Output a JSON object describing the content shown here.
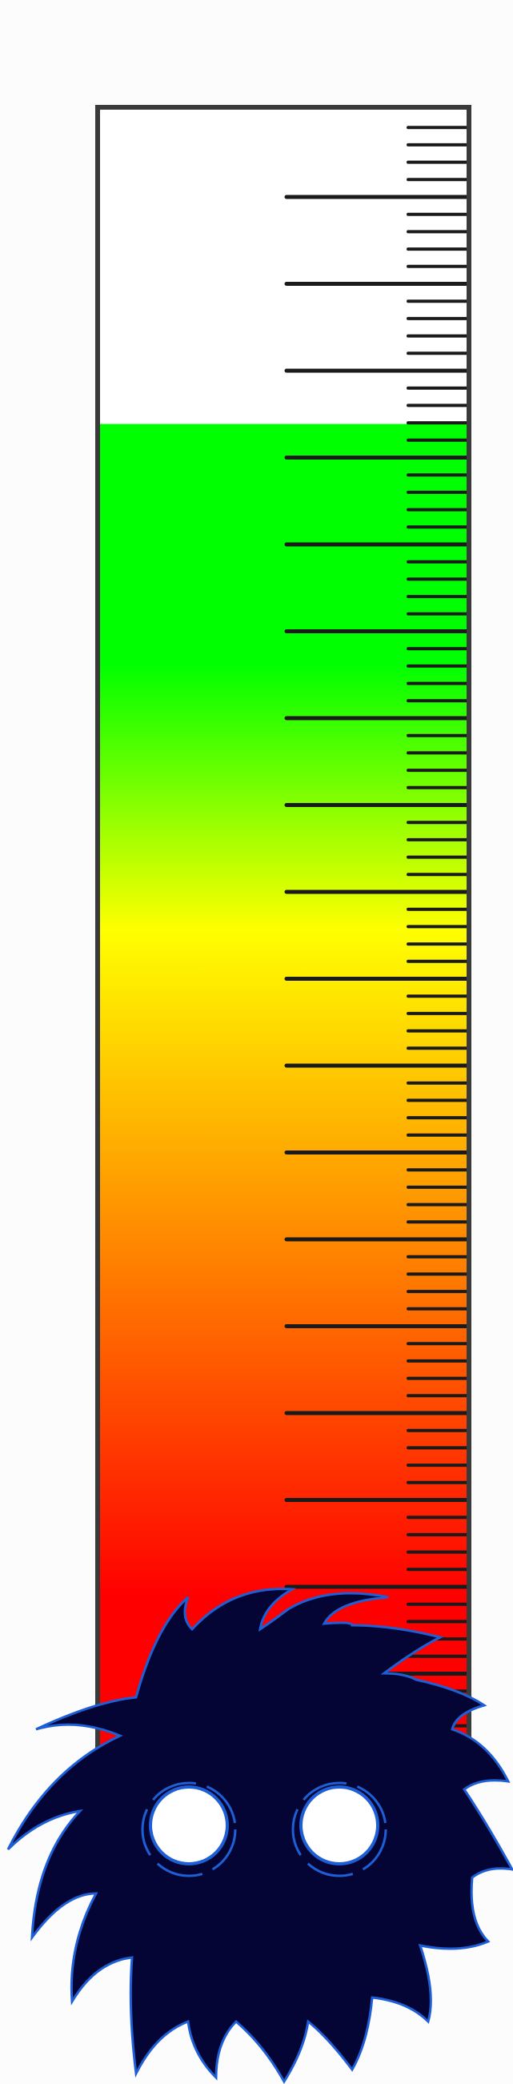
{
  "meter": {
    "level": 0.808,
    "major_ticks_visible": 16,
    "minor_ticks_per_major": 4,
    "colors": {
      "border": "#3a3a3a",
      "empty": "#ffffff",
      "green": "#00ff00",
      "yellow": "#ffff00",
      "orange": "#ff9900",
      "red": "#ff0000",
      "tick": "#1a1a1a"
    }
  },
  "monster": {
    "icon": "fuzzy-monster-icon",
    "body_color": "#050535",
    "outline_color": "#1f5fd6",
    "eye_color": "#ffffff"
  }
}
